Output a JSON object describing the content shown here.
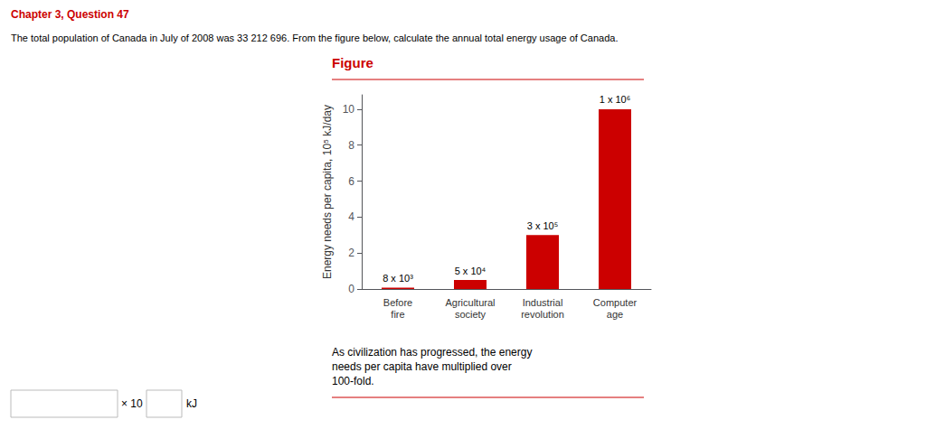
{
  "chart_data": {
    "type": "bar",
    "title": "Figure",
    "annotations": [
      "Chapter 3, Question 47",
      "The total population of Canada in July of 2008 was 33 212 696. From the figure below, calculate the annual total energy usage of Canada.",
      "As civilization has progressed, the energy\nneeds per capita have multiplied over\n100-fold.",
      "× 10",
      "kJ"
    ],
    "categories": [
      "Before\nfire",
      "Agricultural\nsociety",
      "Industrial\nrevolution",
      "Computer\nage"
    ],
    "values": [
      0.08,
      0.5,
      3.0,
      10.0
    ],
    "value_labels": [
      "8 x 10³",
      "5 x 10⁴",
      "3 x 10⁵",
      "1 x 10⁶"
    ],
    "data_labels": true,
    "color": "#cc0000",
    "ylabel": "Energy needs per capita, 10⁵ kJ/day",
    "ylim": [
      0,
      10.8
    ],
    "yticks": [
      0,
      2,
      4,
      6,
      8,
      10
    ],
    "grid": false
  }
}
